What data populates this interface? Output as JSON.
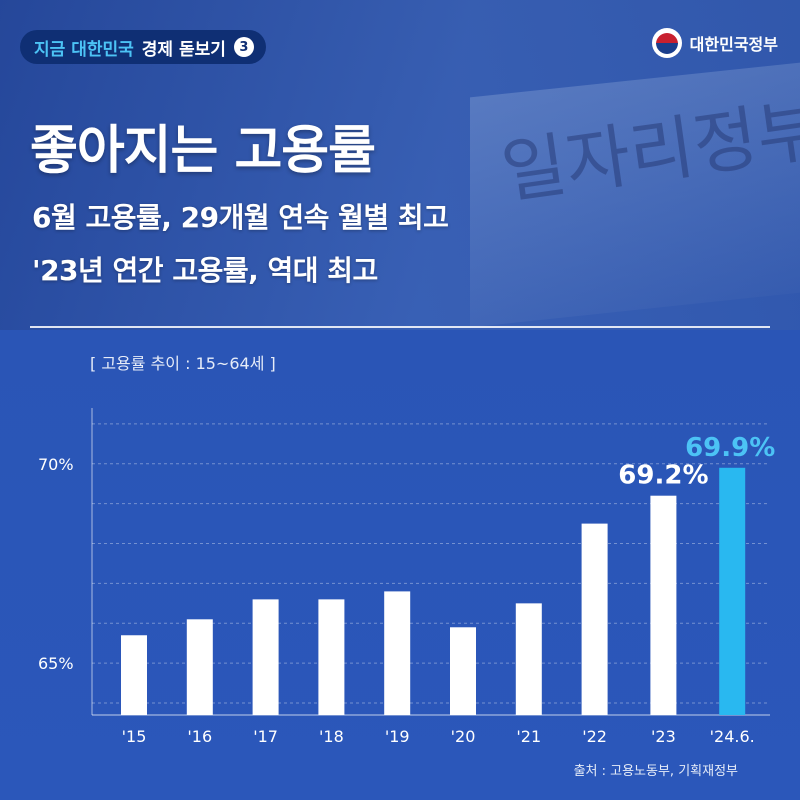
{
  "series_tag": {
    "highlight": "지금 대한민국",
    "text": "경제 돋보기",
    "number": "3"
  },
  "government": {
    "name": "대한민국정부"
  },
  "background_sign_text": "일자리정부",
  "headline": "좋아지는 고용률",
  "subheadlines": [
    "6월 고용률, 29개월 연속 월별 최고",
    "'23년 연간 고용률, 역대 최고"
  ],
  "chart_label": "[ 고용률 추이 : 15~64세 ]",
  "source": "출처 : 고용노동부, 기획재정부",
  "colors": {
    "bar": "#ffffff",
    "highlight_bar": "#29b8f0",
    "highlight_text": "#4cc3f5",
    "background": "#2a55b6"
  },
  "chart_data": {
    "type": "bar",
    "categories": [
      "'15",
      "'16",
      "'17",
      "'18",
      "'19",
      "'20",
      "'21",
      "'22",
      "'23",
      "'24.6."
    ],
    "values": [
      65.7,
      66.1,
      66.6,
      66.6,
      66.8,
      65.9,
      66.5,
      68.5,
      69.2,
      69.9
    ],
    "data_labels": [
      "",
      "",
      "",
      "",
      "",
      "",
      "",
      "",
      "69.2%",
      "69.9%"
    ],
    "highlight_index": 9,
    "yticks": [
      65,
      70
    ],
    "ytick_labels": [
      "65%",
      "70%"
    ],
    "ylim": [
      63.7,
      71.6
    ],
    "grid": true,
    "title": "",
    "xlabel": "",
    "ylabel": ""
  }
}
